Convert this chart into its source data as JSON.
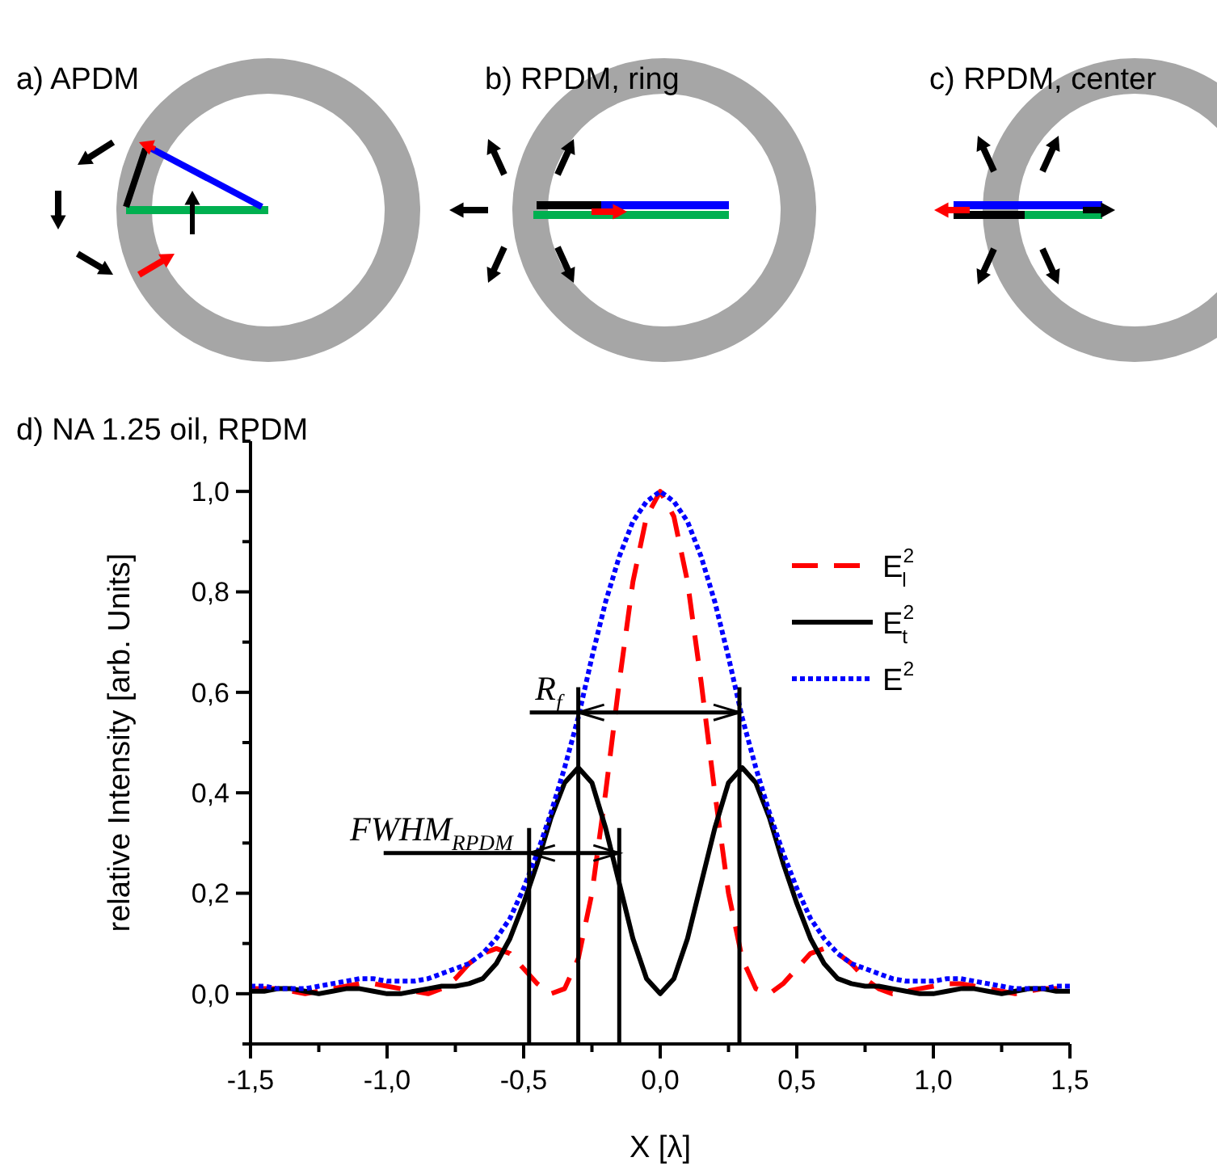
{
  "chart_data": {
    "type": "line",
    "title": "d) NA 1.25 oil, RPDM",
    "xlabel": "X [λ]",
    "ylabel": "relative Intensity [arb. Units]",
    "x": [
      -1.5,
      -1.45,
      -1.4,
      -1.35,
      -1.3,
      -1.25,
      -1.2,
      -1.15,
      -1.1,
      -1.05,
      -1.0,
      -0.95,
      -0.9,
      -0.85,
      -0.8,
      -0.75,
      -0.7,
      -0.65,
      -0.6,
      -0.55,
      -0.5,
      -0.45,
      -0.4,
      -0.35,
      -0.3,
      -0.25,
      -0.2,
      -0.15,
      -0.1,
      -0.05,
      0,
      0.05,
      0.1,
      0.15,
      0.2,
      0.25,
      0.3,
      0.35,
      0.4,
      0.45,
      0.5,
      0.55,
      0.6,
      0.65,
      0.7,
      0.75,
      0.8,
      0.85,
      0.9,
      0.95,
      1.0,
      1.05,
      1.1,
      1.15,
      1.2,
      1.25,
      1.3,
      1.35,
      1.4,
      1.45,
      1.5
    ],
    "series": [
      {
        "name": "E$^{2}$$_{l}$",
        "color": "#ff0000",
        "line_style": "dashed",
        "values": [
          0.01,
          0.01,
          0.01,
          0.005,
          0,
          0.005,
          0.01,
          0.015,
          0.02,
          0.02,
          0.015,
          0.01,
          0.005,
          0,
          0.01,
          0.03,
          0.06,
          0.08,
          0.09,
          0.08,
          0.05,
          0.02,
          0,
          0.01,
          0.07,
          0.2,
          0.4,
          0.62,
          0.82,
          0.95,
          1.0,
          0.95,
          0.82,
          0.62,
          0.4,
          0.2,
          0.07,
          0.01,
          0,
          0.02,
          0.05,
          0.08,
          0.09,
          0.08,
          0.06,
          0.03,
          0.01,
          0,
          0.005,
          0.01,
          0.015,
          0.02,
          0.02,
          0.015,
          0.01,
          0.005,
          0,
          0.005,
          0.01,
          0.01,
          0.01
        ]
      },
      {
        "name": "E$^{2}$$_{t}$",
        "color": "#000000",
        "line_style": "solid",
        "values": [
          0.005,
          0.005,
          0.01,
          0.01,
          0.005,
          0,
          0.005,
          0.01,
          0.01,
          0.005,
          0,
          0,
          0.005,
          0.01,
          0.015,
          0.015,
          0.02,
          0.03,
          0.06,
          0.11,
          0.18,
          0.26,
          0.35,
          0.42,
          0.45,
          0.42,
          0.33,
          0.22,
          0.11,
          0.03,
          0,
          0.03,
          0.11,
          0.22,
          0.33,
          0.42,
          0.45,
          0.42,
          0.35,
          0.26,
          0.18,
          0.11,
          0.06,
          0.03,
          0.02,
          0.015,
          0.015,
          0.01,
          0.005,
          0,
          0,
          0.005,
          0.01,
          0.01,
          0.005,
          0,
          0.005,
          0.01,
          0.01,
          0.005,
          0.005
        ]
      },
      {
        "name": "E$^{2}$",
        "color": "#0000ff",
        "line_style": "dotted",
        "values": [
          0.015,
          0.015,
          0.01,
          0.01,
          0.01,
          0.015,
          0.02,
          0.025,
          0.03,
          0.03,
          0.025,
          0.025,
          0.025,
          0.03,
          0.04,
          0.05,
          0.06,
          0.08,
          0.11,
          0.15,
          0.21,
          0.28,
          0.36,
          0.45,
          0.55,
          0.67,
          0.78,
          0.87,
          0.94,
          0.98,
          1.0,
          0.98,
          0.94,
          0.87,
          0.78,
          0.67,
          0.55,
          0.45,
          0.36,
          0.28,
          0.21,
          0.15,
          0.11,
          0.08,
          0.06,
          0.05,
          0.04,
          0.03,
          0.025,
          0.025,
          0.025,
          0.03,
          0.03,
          0.025,
          0.02,
          0.015,
          0.01,
          0.01,
          0.01,
          0.015,
          0.015
        ]
      }
    ],
    "xlim": [
      -1.5,
      1.5
    ],
    "xticks": [
      {
        "value": -1.5,
        "label": "-1,5"
      },
      {
        "value": -1.25,
        "label": null
      },
      {
        "value": -1,
        "label": "-1,0"
      },
      {
        "value": -0.75,
        "label": null
      },
      {
        "value": -0.5,
        "label": "-0,5"
      },
      {
        "value": -0.25,
        "label": null
      },
      {
        "value": 0,
        "label": "0,0"
      },
      {
        "value": 0.25,
        "label": null
      },
      {
        "value": 0.5,
        "label": "0,5"
      },
      {
        "value": 0.75,
        "label": null
      },
      {
        "value": 1,
        "label": "1,0"
      },
      {
        "value": 1.25,
        "label": null
      },
      {
        "value": 1.5,
        "label": "1,5"
      }
    ],
    "ylim": [
      -0.1,
      1.1
    ],
    "yticks": [
      {
        "value": -0.1,
        "label": null
      },
      {
        "value": 0,
        "label": "0,0"
      },
      {
        "value": 0.1,
        "label": null
      },
      {
        "value": 0.2,
        "label": "0,2"
      },
      {
        "value": 0.3,
        "label": null
      },
      {
        "value": 0.4,
        "label": "0,4"
      },
      {
        "value": 0.5,
        "label": null
      },
      {
        "value": 0.6,
        "label": "0,6"
      },
      {
        "value": 0.7,
        "label": null
      },
      {
        "value": 0.8,
        "label": "0,8"
      },
      {
        "value": 0.9,
        "label": null
      },
      {
        "value": 1,
        "label": "1,0"
      },
      {
        "value": 1.1,
        "label": null
      }
    ],
    "ref_lines": [
      {
        "axis": "x",
        "value": -0.3,
        "color": "#000000"
      },
      {
        "axis": "x",
        "value": 0.29,
        "color": "#000000"
      },
      {
        "axis": "x",
        "value": -0.48,
        "color": "#000000"
      },
      {
        "axis": "x",
        "value": -0.15,
        "color": "#000000"
      }
    ],
    "annotations": [
      "a) APDM",
      "b) RPDM, ring",
      "c) RPDM, center",
      {
        "text": "R$_{f}$",
        "x": -0.3,
        "y": 0.56
      },
      {
        "text": "FWHM$_{RPDM}$",
        "x": -0.48,
        "y": 0.28
      }
    ],
    "legend": "top right",
    "grid": false,
    "marker": "none"
  }
}
